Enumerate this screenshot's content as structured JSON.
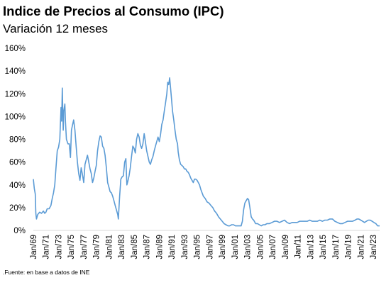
{
  "chart_data": {
    "type": "line",
    "title": "Indice de Precios al Consumo (IPC)",
    "subtitle": "Variación 12 meses",
    "source": ".Fuente: en base a datos de INE",
    "ylabel": "",
    "xlabel": "",
    "ylim": [
      0,
      160
    ],
    "xlim": [
      1969.0,
      2024.0
    ],
    "yticks": [
      0,
      20,
      40,
      60,
      80,
      100,
      120,
      140,
      160
    ],
    "ytick_labels": [
      "0%",
      "20%",
      "40%",
      "60%",
      "80%",
      "100%",
      "120%",
      "140%",
      "160%"
    ],
    "xticks": [
      1969,
      1971,
      1973,
      1975,
      1977,
      1979,
      1981,
      1983,
      1985,
      1987,
      1989,
      1991,
      1993,
      1995,
      1997,
      1999,
      2001,
      2003,
      2005,
      2007,
      2009,
      2011,
      2013,
      2015,
      2017,
      2019,
      2021,
      2023
    ],
    "xtick_labels": [
      "Jan/69",
      "Jan/71",
      "Jan/73",
      "Jan/75",
      "Jan/77",
      "Jan/79",
      "Jan/81",
      "Jan/83",
      "Jan/85",
      "Jan/87",
      "Jan/89",
      "Jan/91",
      "Jan/93",
      "Jan/95",
      "Jan/97",
      "Jan/99",
      "Jan/01",
      "Jan/03",
      "Jan/05",
      "Jan/07",
      "Jan/09",
      "Jan/11",
      "Jan/13",
      "Jan/15",
      "Jan/17",
      "Jan/19",
      "Jan/21",
      "Jan/23"
    ],
    "grid": false,
    "legend": "none",
    "series": [
      {
        "color": "#5b9bd5",
        "points": [
          [
            1969.0,
            45
          ],
          [
            1969.15,
            37
          ],
          [
            1969.3,
            32
          ],
          [
            1969.4,
            15
          ],
          [
            1969.5,
            10
          ],
          [
            1969.7,
            14
          ],
          [
            1970.0,
            16
          ],
          [
            1970.3,
            15
          ],
          [
            1970.6,
            17
          ],
          [
            1970.8,
            15
          ],
          [
            1971.0,
            16
          ],
          [
            1971.2,
            19
          ],
          [
            1971.5,
            19
          ],
          [
            1971.8,
            22
          ],
          [
            1972.0,
            28
          ],
          [
            1972.2,
            33
          ],
          [
            1972.4,
            40
          ],
          [
            1972.6,
            55
          ],
          [
            1972.8,
            70
          ],
          [
            1973.0,
            73
          ],
          [
            1973.2,
            80
          ],
          [
            1973.4,
            108
          ],
          [
            1973.5,
            96
          ],
          [
            1973.6,
            125
          ],
          [
            1973.75,
            88
          ],
          [
            1973.85,
            105
          ],
          [
            1974.0,
            111
          ],
          [
            1974.1,
            95
          ],
          [
            1974.25,
            80
          ],
          [
            1974.5,
            76
          ],
          [
            1974.7,
            76
          ],
          [
            1974.9,
            64
          ],
          [
            1975.05,
            88
          ],
          [
            1975.2,
            92
          ],
          [
            1975.4,
            97
          ],
          [
            1975.6,
            88
          ],
          [
            1975.8,
            74
          ],
          [
            1976.0,
            60
          ],
          [
            1976.2,
            50
          ],
          [
            1976.4,
            44
          ],
          [
            1976.6,
            55
          ],
          [
            1976.8,
            49
          ],
          [
            1977.0,
            42
          ],
          [
            1977.2,
            58
          ],
          [
            1977.4,
            62
          ],
          [
            1977.6,
            66
          ],
          [
            1977.8,
            60
          ],
          [
            1978.0,
            54
          ],
          [
            1978.2,
            50
          ],
          [
            1978.4,
            42
          ],
          [
            1978.6,
            46
          ],
          [
            1978.8,
            52
          ],
          [
            1979.0,
            57
          ],
          [
            1979.2,
            70
          ],
          [
            1979.4,
            78
          ],
          [
            1979.6,
            83
          ],
          [
            1979.8,
            82
          ],
          [
            1980.0,
            74
          ],
          [
            1980.2,
            72
          ],
          [
            1980.4,
            66
          ],
          [
            1980.6,
            55
          ],
          [
            1980.8,
            42
          ],
          [
            1981.0,
            38
          ],
          [
            1981.2,
            34
          ],
          [
            1981.4,
            33
          ],
          [
            1981.6,
            30
          ],
          [
            1981.8,
            26
          ],
          [
            1982.0,
            22
          ],
          [
            1982.2,
            18
          ],
          [
            1982.4,
            14
          ],
          [
            1982.5,
            10
          ],
          [
            1982.7,
            30
          ],
          [
            1982.9,
            45
          ],
          [
            1983.1,
            47
          ],
          [
            1983.3,
            48
          ],
          [
            1983.5,
            60
          ],
          [
            1983.7,
            63
          ],
          [
            1983.85,
            40
          ],
          [
            1984.0,
            43
          ],
          [
            1984.2,
            48
          ],
          [
            1984.4,
            55
          ],
          [
            1984.6,
            65
          ],
          [
            1984.8,
            74
          ],
          [
            1985.0,
            72
          ],
          [
            1985.2,
            68
          ],
          [
            1985.4,
            80
          ],
          [
            1985.6,
            85
          ],
          [
            1985.8,
            82
          ],
          [
            1986.0,
            75
          ],
          [
            1986.2,
            72
          ],
          [
            1986.4,
            76
          ],
          [
            1986.6,
            85
          ],
          [
            1986.8,
            78
          ],
          [
            1987.0,
            70
          ],
          [
            1987.2,
            65
          ],
          [
            1987.4,
            60
          ],
          [
            1987.6,
            58
          ],
          [
            1987.8,
            62
          ],
          [
            1988.0,
            65
          ],
          [
            1988.2,
            70
          ],
          [
            1988.4,
            74
          ],
          [
            1988.6,
            78
          ],
          [
            1988.8,
            82
          ],
          [
            1989.0,
            78
          ],
          [
            1989.2,
            84
          ],
          [
            1989.4,
            93
          ],
          [
            1989.6,
            97
          ],
          [
            1989.8,
            105
          ],
          [
            1990.0,
            112
          ],
          [
            1990.2,
            120
          ],
          [
            1990.35,
            130
          ],
          [
            1990.5,
            128
          ],
          [
            1990.65,
            134
          ],
          [
            1990.8,
            125
          ],
          [
            1990.95,
            115
          ],
          [
            1991.1,
            105
          ],
          [
            1991.3,
            97
          ],
          [
            1991.5,
            88
          ],
          [
            1991.7,
            80
          ],
          [
            1991.9,
            76
          ],
          [
            1992.0,
            69
          ],
          [
            1992.2,
            62
          ],
          [
            1992.4,
            58
          ],
          [
            1992.6,
            57
          ],
          [
            1992.8,
            56
          ],
          [
            1993.0,
            54
          ],
          [
            1993.2,
            54
          ],
          [
            1993.4,
            52
          ],
          [
            1993.6,
            51
          ],
          [
            1993.8,
            49
          ],
          [
            1994.0,
            46
          ],
          [
            1994.2,
            44
          ],
          [
            1994.4,
            42
          ],
          [
            1994.6,
            45
          ],
          [
            1994.8,
            45
          ],
          [
            1995.0,
            44
          ],
          [
            1995.2,
            42
          ],
          [
            1995.4,
            40
          ],
          [
            1995.6,
            36
          ],
          [
            1995.8,
            33
          ],
          [
            1996.0,
            30
          ],
          [
            1996.3,
            28
          ],
          [
            1996.6,
            25
          ],
          [
            1996.9,
            24
          ],
          [
            1997.2,
            22
          ],
          [
            1997.5,
            20
          ],
          [
            1997.8,
            17
          ],
          [
            1998.1,
            15
          ],
          [
            1998.4,
            12
          ],
          [
            1998.7,
            10
          ],
          [
            1999.0,
            8
          ],
          [
            1999.3,
            6
          ],
          [
            1999.6,
            5
          ],
          [
            1999.9,
            4
          ],
          [
            2000.2,
            4
          ],
          [
            2000.5,
            5
          ],
          [
            2000.8,
            5
          ],
          [
            2001.1,
            4
          ],
          [
            2001.4,
            4
          ],
          [
            2001.7,
            4
          ],
          [
            2002.0,
            4
          ],
          [
            2002.2,
            8
          ],
          [
            2002.4,
            18
          ],
          [
            2002.6,
            24
          ],
          [
            2002.8,
            26
          ],
          [
            2003.0,
            28
          ],
          [
            2003.2,
            27
          ],
          [
            2003.4,
            20
          ],
          [
            2003.6,
            12
          ],
          [
            2003.8,
            10
          ],
          [
            2004.0,
            9
          ],
          [
            2004.3,
            6
          ],
          [
            2004.6,
            6
          ],
          [
            2004.9,
            5
          ],
          [
            2005.2,
            4
          ],
          [
            2005.5,
            5
          ],
          [
            2005.8,
            5
          ],
          [
            2006.1,
            6
          ],
          [
            2006.5,
            6
          ],
          [
            2006.9,
            7
          ],
          [
            2007.3,
            8
          ],
          [
            2007.7,
            8
          ],
          [
            2008.1,
            7
          ],
          [
            2008.5,
            8
          ],
          [
            2008.9,
            9
          ],
          [
            2009.3,
            7
          ],
          [
            2009.7,
            6
          ],
          [
            2010.1,
            7
          ],
          [
            2010.5,
            7
          ],
          [
            2010.9,
            7
          ],
          [
            2011.3,
            8
          ],
          [
            2011.7,
            8
          ],
          [
            2012.1,
            8
          ],
          [
            2012.5,
            8
          ],
          [
            2012.9,
            9
          ],
          [
            2013.3,
            8
          ],
          [
            2013.7,
            8
          ],
          [
            2014.1,
            8
          ],
          [
            2014.5,
            9
          ],
          [
            2014.9,
            8
          ],
          [
            2015.3,
            9
          ],
          [
            2015.7,
            9
          ],
          [
            2016.1,
            10
          ],
          [
            2016.5,
            10
          ],
          [
            2016.9,
            8
          ],
          [
            2017.3,
            7
          ],
          [
            2017.7,
            6
          ],
          [
            2018.1,
            6
          ],
          [
            2018.5,
            7
          ],
          [
            2018.9,
            8
          ],
          [
            2019.3,
            8
          ],
          [
            2019.7,
            8
          ],
          [
            2020.1,
            9
          ],
          [
            2020.4,
            10
          ],
          [
            2020.7,
            10
          ],
          [
            2021.0,
            9
          ],
          [
            2021.3,
            8
          ],
          [
            2021.6,
            7
          ],
          [
            2021.9,
            8
          ],
          [
            2022.2,
            9
          ],
          [
            2022.5,
            9
          ],
          [
            2022.8,
            8
          ],
          [
            2023.1,
            7
          ],
          [
            2023.4,
            6
          ],
          [
            2023.7,
            4
          ],
          [
            2024.0,
            4
          ]
        ]
      }
    ]
  }
}
